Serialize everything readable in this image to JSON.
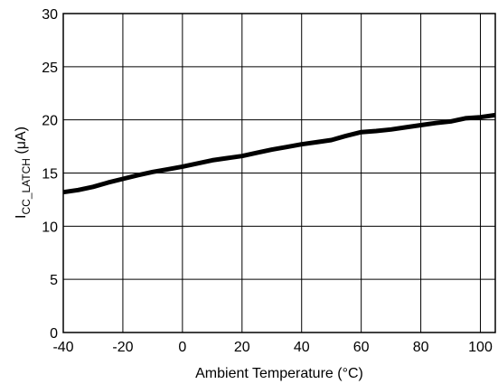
{
  "chart_data": {
    "type": "line",
    "xlabel": "Ambient Temperature (°C)",
    "ylabel": {
      "main": "I",
      "sub": "CC_LATCH",
      "unit": " (μA)"
    },
    "xlim": [
      -40,
      105
    ],
    "ylim": [
      0,
      30
    ],
    "xticks": [
      -40,
      -20,
      0,
      20,
      40,
      60,
      80,
      100
    ],
    "yticks": [
      0,
      5,
      10,
      15,
      20,
      25,
      30
    ],
    "grid": true,
    "series": [
      {
        "x": [
          -40,
          -35,
          -30,
          -25,
          -20,
          -15,
          -10,
          -5,
          0,
          5,
          10,
          15,
          20,
          25,
          30,
          35,
          40,
          45,
          50,
          55,
          60,
          65,
          70,
          75,
          80,
          85,
          90,
          95,
          100,
          105
        ],
        "y": [
          13.2,
          13.4,
          13.7,
          14.1,
          14.45,
          14.8,
          15.1,
          15.35,
          15.6,
          15.9,
          16.2,
          16.4,
          16.6,
          16.9,
          17.2,
          17.45,
          17.7,
          17.9,
          18.1,
          18.5,
          18.85,
          18.95,
          19.1,
          19.3,
          19.5,
          19.7,
          19.85,
          20.15,
          20.25,
          20.45
        ],
        "color": "#000000"
      }
    ]
  }
}
